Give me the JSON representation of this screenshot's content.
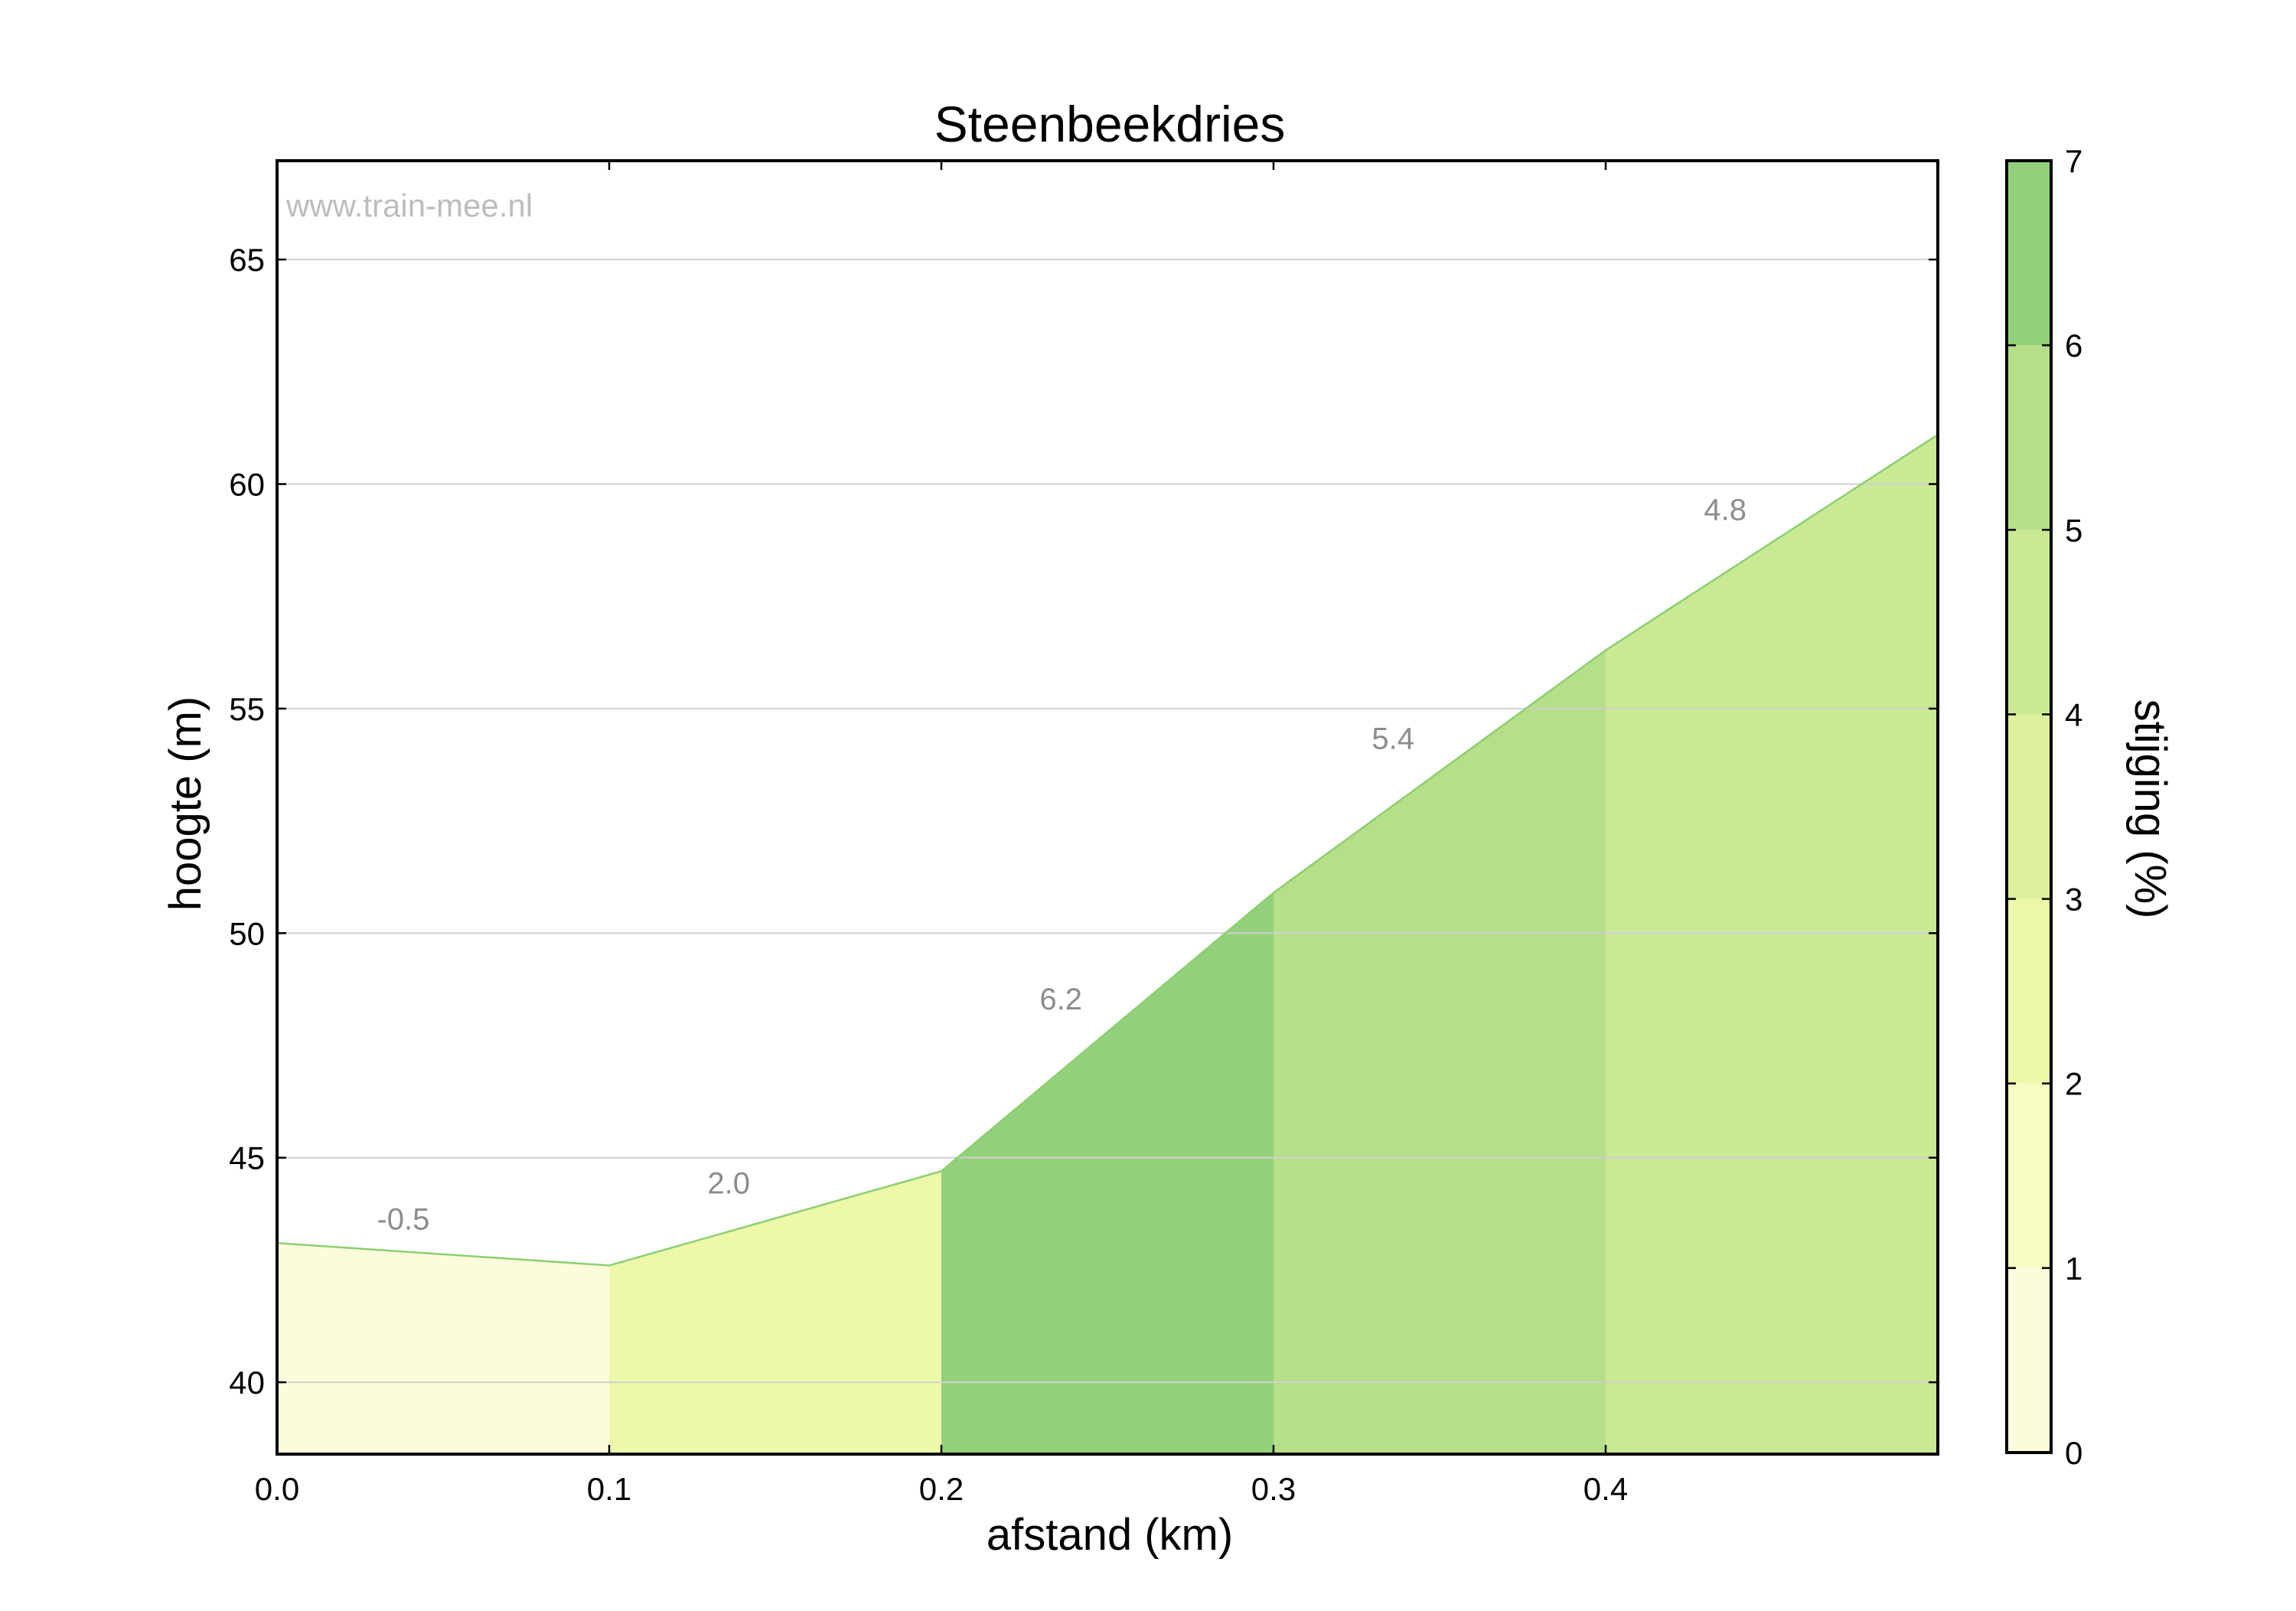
{
  "watermark": "www.train-mee.nl",
  "chart_data": {
    "type": "area",
    "title": "Steenbeekdries",
    "xlabel": "afstand (km)",
    "ylabel": "hoogte (m)",
    "xlim": [
      0.0,
      0.5
    ],
    "ylim": [
      38.4,
      67.2
    ],
    "xticks": [
      "0.0",
      "0.1",
      "0.2",
      "0.3",
      "0.4"
    ],
    "yticks": [
      "40",
      "45",
      "50",
      "55",
      "60",
      "65"
    ],
    "grid": "horizontal",
    "profile": {
      "x": [
        0.0,
        0.1,
        0.2,
        0.3,
        0.4,
        0.5
      ],
      "y": [
        43.1,
        42.6,
        44.7,
        50.9,
        56.3,
        61.1
      ]
    },
    "segments": [
      {
        "x0": 0.0,
        "x1": 0.1,
        "gradient": "-0.5",
        "color": "#fcfcdc",
        "label_x": 0.038,
        "label_y": 43.4
      },
      {
        "x0": 0.1,
        "x1": 0.2,
        "gradient": "2.0",
        "color": "#eef8ab",
        "label_x": 0.136,
        "label_y": 44.2
      },
      {
        "x0": 0.2,
        "x1": 0.3,
        "gradient": "6.2",
        "color": "#93d07b",
        "label_x": 0.236,
        "label_y": 48.3
      },
      {
        "x0": 0.3,
        "x1": 0.4,
        "gradient": "5.4",
        "color": "#b5df88",
        "label_x": 0.336,
        "label_y": 54.1
      },
      {
        "x0": 0.4,
        "x1": 0.5,
        "gradient": "4.8",
        "color": "#c9e995",
        "label_x": 0.436,
        "label_y": 59.2
      }
    ],
    "colorbar": {
      "label": "stijging (%)",
      "range": [
        0,
        7
      ],
      "ticks": [
        "0",
        "1",
        "2",
        "3",
        "4",
        "5",
        "6",
        "7"
      ],
      "bands": [
        {
          "from": 0,
          "to": 1,
          "color": "#fcfcdc"
        },
        {
          "from": 1,
          "to": 2,
          "color": "#f8fcc2"
        },
        {
          "from": 2,
          "to": 3,
          "color": "#eef8ab"
        },
        {
          "from": 3,
          "to": 4,
          "color": "#dcf09e"
        },
        {
          "from": 4,
          "to": 5,
          "color": "#c9e995"
        },
        {
          "from": 5,
          "to": 6,
          "color": "#b5df88"
        },
        {
          "from": 6,
          "to": 7,
          "color": "#93d07b"
        }
      ]
    }
  }
}
